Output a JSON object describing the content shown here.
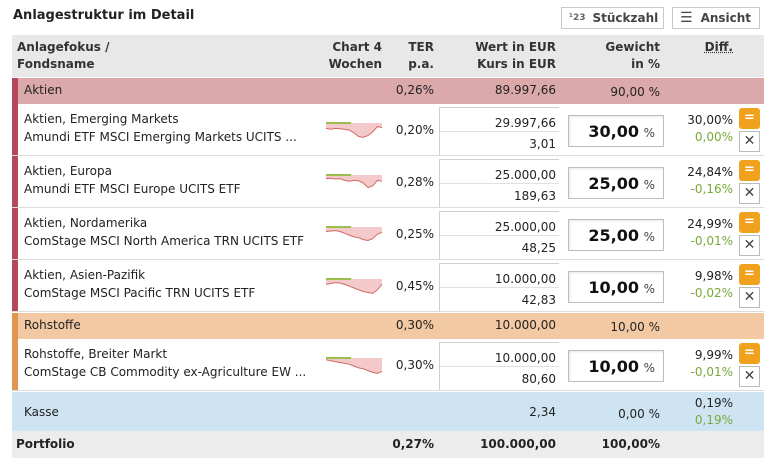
{
  "title": "Anlagestruktur im Detail",
  "buttons": {
    "stueckzahl_icon": "¹23",
    "stueckzahl": "Stückzahl",
    "ansicht_icon": "☰",
    "ansicht": "Ansicht"
  },
  "header": {
    "anlagefokus": "Anlagefokus /",
    "fondsname": "Fondsname",
    "chart1": "Chart 4",
    "chart2": "Wochen",
    "ter1": "TER",
    "ter2": "p.a.",
    "wert1": "Wert in EUR",
    "wert2": "Kurs in EUR",
    "gewicht1": "Gewicht",
    "gewicht2": "in %",
    "diff": "Diff."
  },
  "groups": {
    "aktien": {
      "name": "Aktien",
      "ter": "0,26%",
      "wert": "89.997,66",
      "gewicht": "90,00 %"
    },
    "rohstoffe": {
      "name": "Rohstoffe",
      "ter": "0,30%",
      "wert": "10.000,00",
      "gewicht": "10,00 %"
    },
    "kasse": {
      "name": "Kasse",
      "wert": "2,34",
      "gewicht": "0,00 %",
      "diff1": "0,19%",
      "diff2": "0,19%"
    }
  },
  "funds": [
    {
      "focus": "Aktien, Emerging Markets",
      "name": "Amundi ETF MSCI Emerging Markets UCITS ...",
      "ter": "0,20%",
      "wert": "29.997,66",
      "kurs": "3,01",
      "gewicht": "30,00",
      "pct": "%",
      "diff1": "30,00%",
      "diff2": "0,00%",
      "trend": [
        0.3,
        0.35,
        0.3,
        0.32,
        0.35,
        0.4,
        0.55,
        0.75,
        0.8,
        0.7,
        0.5,
        0.2,
        0.25
      ]
    },
    {
      "focus": "Aktien, Europa",
      "name": "Amundi ETF MSCI Europe UCITS ETF",
      "ter": "0,28%",
      "wert": "25.000,00",
      "kurs": "189,63",
      "gewicht": "25,00",
      "pct": "%",
      "diff1": "24,84%",
      "diff2": "-0,16%",
      "trend": [
        0.2,
        0.18,
        0.22,
        0.2,
        0.3,
        0.35,
        0.3,
        0.32,
        0.45,
        0.7,
        0.6,
        0.3,
        0.35
      ]
    },
    {
      "focus": "Aktien, Nordamerika",
      "name": "ComStage MSCI North America TRN UCITS ETF",
      "ter": "0,25%",
      "wert": "25.000,00",
      "kurs": "48,25",
      "gewicht": "25,00",
      "pct": "%",
      "diff1": "24,99%",
      "diff2": "-0,01%",
      "trend": [
        0.25,
        0.22,
        0.2,
        0.25,
        0.35,
        0.45,
        0.55,
        0.6,
        0.7,
        0.75,
        0.65,
        0.4,
        0.3
      ]
    },
    {
      "focus": "Aktien, Asien-Pazifik",
      "name": "ComStage MSCI Pacific TRN UCITS ETF",
      "ter": "0,45%",
      "wert": "10.000,00",
      "kurs": "42,83",
      "gewicht": "10,00",
      "pct": "%",
      "diff1": "9,98%",
      "diff2": "-0,02%",
      "trend": [
        0.3,
        0.25,
        0.2,
        0.22,
        0.3,
        0.4,
        0.5,
        0.6,
        0.7,
        0.75,
        0.8,
        0.6,
        0.3
      ]
    },
    {
      "focus": "Rohstoffe, Breiter Markt",
      "name": "ComStage CB Commodity ex-Agriculture EW ...",
      "ter": "0,30%",
      "wert": "10.000,00",
      "kurs": "80,60",
      "gewicht": "10,00",
      "pct": "%",
      "diff1": "9,99%",
      "diff2": "-0,01%",
      "trend": [
        0.1,
        0.15,
        0.2,
        0.25,
        0.3,
        0.35,
        0.45,
        0.55,
        0.6,
        0.7,
        0.8,
        0.85,
        0.75
      ]
    }
  ],
  "footer": {
    "label": "Portfolio",
    "ter": "0,27%",
    "wert": "100.000,00",
    "gewicht": "100,00%"
  },
  "icons": {
    "equalize": "equal-icon",
    "remove": "close-icon"
  },
  "actions": {
    "equalize_glyph": "=",
    "remove_glyph": "✕"
  },
  "colors": {
    "aktien_bar": "#b6485b",
    "aktien_bg": "#dca9ab",
    "roh_bar": "#e1964f",
    "roh_bg": "#f2c9a2",
    "kasse_bg": "#cfe4f2",
    "accent": "#f0a21e",
    "positive": "#7aa83a"
  }
}
